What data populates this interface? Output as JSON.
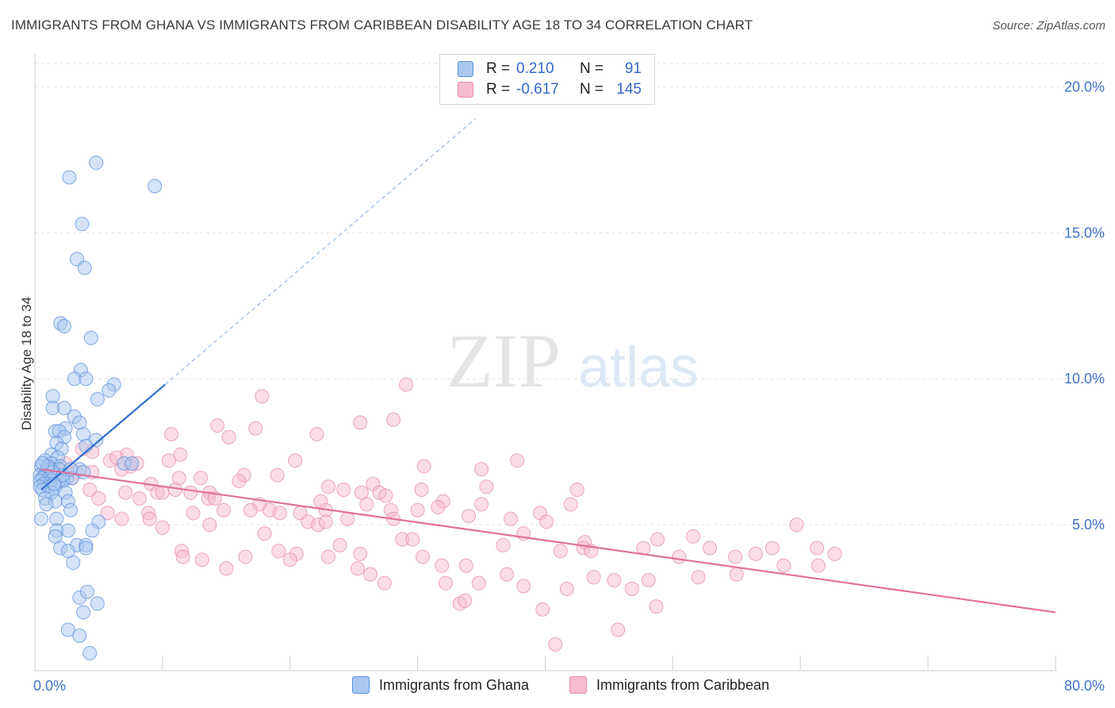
{
  "title": "IMMIGRANTS FROM GHANA VS IMMIGRANTS FROM CARIBBEAN DISABILITY AGE 18 TO 34 CORRELATION CHART",
  "source": "Source: ZipAtlas.com",
  "watermark": {
    "zip": "ZIP",
    "atlas": "atlas"
  },
  "legend": {
    "ghana": {
      "r_label": "R =",
      "r_value": "0.210",
      "n_label": "N =",
      "n_value": "91"
    },
    "caribbean": {
      "r_label": "R =",
      "r_value": "-0.617",
      "n_label": "N =",
      "n_value": "145"
    }
  },
  "bottom_legend": {
    "ghana": "Immigrants from Ghana",
    "caribbean": "Immigrants from Caribbean"
  },
  "colors": {
    "ghana_fill": "#aac8f0",
    "ghana_stroke": "#5b8fdc",
    "ghana_line": "#2f6fd0",
    "caribbean_fill": "#f7bcd0",
    "caribbean_stroke": "#e48aab",
    "caribbean_line": "#e0709a",
    "axis_text": "#3f72c9"
  },
  "chart_data": {
    "type": "scatter",
    "title": "IMMIGRANTS FROM GHANA VS IMMIGRANTS FROM CARIBBEAN DISABILITY AGE 18 TO 34 CORRELATION CHART",
    "xlabel": "",
    "ylabel": "Disability Age 18 to 34",
    "xlim": [
      0,
      80
    ],
    "ylim": [
      0,
      20.8
    ],
    "x_tick_labels": [
      "0.0%",
      "80.0%"
    ],
    "y_ticks": [
      5,
      10,
      15,
      20
    ],
    "y_tick_labels": [
      "5.0%",
      "10.0%",
      "15.0%",
      "20.0%"
    ],
    "grid": true,
    "series": [
      {
        "name": "Immigrants from Ghana",
        "r": 0.21,
        "n": 91,
        "trend_solid": [
          [
            0.5,
            6.2
          ],
          [
            10.2,
            9.8
          ]
        ],
        "trend_dashed": [
          [
            10.2,
            9.8
          ],
          [
            34.5,
            18.9
          ]
        ],
        "points": [
          [
            4.8,
            17.4
          ],
          [
            2.7,
            16.9
          ],
          [
            9.4,
            16.6
          ],
          [
            3.7,
            15.3
          ],
          [
            3.3,
            14.1
          ],
          [
            3.9,
            13.8
          ],
          [
            2.0,
            11.9
          ],
          [
            2.3,
            11.8
          ],
          [
            4.4,
            11.4
          ],
          [
            3.6,
            10.3
          ],
          [
            3.1,
            10.0
          ],
          [
            4.0,
            10.0
          ],
          [
            6.2,
            9.8
          ],
          [
            5.8,
            9.6
          ],
          [
            4.9,
            9.3
          ],
          [
            1.4,
            9.4
          ],
          [
            1.4,
            9.0
          ],
          [
            2.3,
            9.0
          ],
          [
            3.1,
            8.7
          ],
          [
            3.5,
            8.5
          ],
          [
            1.6,
            8.2
          ],
          [
            2.4,
            8.3
          ],
          [
            1.9,
            8.2
          ],
          [
            2.3,
            8.0
          ],
          [
            3.8,
            8.1
          ],
          [
            4.8,
            7.9
          ],
          [
            1.7,
            7.8
          ],
          [
            2.1,
            7.6
          ],
          [
            4.0,
            7.7
          ],
          [
            1.3,
            7.4
          ],
          [
            1.8,
            7.3
          ],
          [
            0.8,
            7.2
          ],
          [
            1.3,
            7.1
          ],
          [
            2.0,
            7.0
          ],
          [
            7.0,
            7.1
          ],
          [
            7.6,
            7.1
          ],
          [
            0.5,
            7.0
          ],
          [
            1.0,
            6.9
          ],
          [
            1.3,
            6.9
          ],
          [
            1.9,
            6.9
          ],
          [
            3.5,
            6.9
          ],
          [
            3.8,
            6.8
          ],
          [
            0.4,
            6.7
          ],
          [
            0.8,
            6.7
          ],
          [
            1.6,
            6.7
          ],
          [
            2.5,
            6.6
          ],
          [
            0.6,
            6.6
          ],
          [
            1.1,
            6.6
          ],
          [
            1.9,
            6.5
          ],
          [
            0.4,
            6.5
          ],
          [
            0.7,
            6.4
          ],
          [
            1.3,
            6.5
          ],
          [
            2.2,
            6.5
          ],
          [
            2.9,
            6.6
          ],
          [
            0.4,
            6.3
          ],
          [
            1.1,
            6.3
          ],
          [
            1.6,
            6.3
          ],
          [
            0.6,
            6.2
          ],
          [
            1.3,
            6.1
          ],
          [
            2.4,
            6.1
          ],
          [
            0.8,
            5.9
          ],
          [
            1.6,
            5.8
          ],
          [
            2.6,
            5.8
          ],
          [
            0.9,
            5.7
          ],
          [
            2.8,
            5.5
          ],
          [
            0.5,
            5.2
          ],
          [
            1.7,
            5.2
          ],
          [
            5.0,
            5.1
          ],
          [
            1.7,
            4.8
          ],
          [
            2.6,
            4.8
          ],
          [
            4.5,
            4.8
          ],
          [
            1.6,
            4.6
          ],
          [
            3.3,
            4.3
          ],
          [
            4.0,
            4.3
          ],
          [
            2.0,
            4.2
          ],
          [
            2.6,
            4.1
          ],
          [
            4.0,
            4.2
          ],
          [
            3.0,
            3.7
          ],
          [
            3.5,
            2.5
          ],
          [
            4.1,
            2.7
          ],
          [
            4.9,
            2.3
          ],
          [
            3.8,
            2.0
          ],
          [
            2.6,
            1.4
          ],
          [
            3.5,
            1.2
          ],
          [
            4.3,
            0.6
          ],
          [
            1.4,
            6.8
          ],
          [
            2.2,
            6.7
          ],
          [
            1.0,
            7.0
          ],
          [
            0.6,
            7.1
          ],
          [
            1.5,
            6.4
          ],
          [
            2.8,
            6.9
          ]
        ]
      },
      {
        "name": "Immigrants from Caribbean",
        "r": -0.617,
        "n": 145,
        "trend_solid": [
          [
            0.5,
            6.9
          ],
          [
            80.0,
            2.0
          ]
        ],
        "points": [
          [
            29.1,
            9.8
          ],
          [
            17.8,
            9.4
          ],
          [
            25.5,
            8.5
          ],
          [
            28.1,
            8.6
          ],
          [
            14.3,
            8.4
          ],
          [
            17.3,
            8.3
          ],
          [
            10.7,
            8.1
          ],
          [
            22.1,
            8.1
          ],
          [
            15.2,
            8.0
          ],
          [
            3.7,
            7.6
          ],
          [
            4.5,
            7.5
          ],
          [
            7.2,
            7.4
          ],
          [
            11.4,
            7.4
          ],
          [
            5.9,
            7.2
          ],
          [
            6.4,
            7.3
          ],
          [
            8.0,
            7.1
          ],
          [
            10.5,
            7.2
          ],
          [
            20.4,
            7.2
          ],
          [
            2.4,
            7.1
          ],
          [
            7.5,
            7.0
          ],
          [
            30.5,
            7.0
          ],
          [
            37.8,
            7.2
          ],
          [
            35.0,
            6.9
          ],
          [
            1.1,
            6.9
          ],
          [
            3.3,
            6.8
          ],
          [
            4.5,
            6.8
          ],
          [
            6.8,
            6.9
          ],
          [
            0.7,
            6.8
          ],
          [
            1.7,
            6.6
          ],
          [
            16.4,
            6.7
          ],
          [
            19.0,
            6.7
          ],
          [
            2.9,
            6.6
          ],
          [
            11.3,
            6.6
          ],
          [
            13.0,
            6.6
          ],
          [
            16.0,
            6.5
          ],
          [
            9.1,
            6.4
          ],
          [
            26.5,
            6.4
          ],
          [
            35.4,
            6.3
          ],
          [
            4.3,
            6.2
          ],
          [
            11.0,
            6.2
          ],
          [
            12.2,
            6.1
          ],
          [
            13.7,
            6.1
          ],
          [
            9.6,
            6.1
          ],
          [
            10.0,
            6.1
          ],
          [
            24.2,
            6.2
          ],
          [
            25.6,
            6.1
          ],
          [
            27.0,
            6.1
          ],
          [
            30.3,
            6.2
          ],
          [
            42.5,
            6.2
          ],
          [
            7.1,
            6.1
          ],
          [
            8.2,
            5.9
          ],
          [
            13.6,
            5.9
          ],
          [
            14.1,
            5.9
          ],
          [
            5.0,
            5.9
          ],
          [
            22.4,
            5.8
          ],
          [
            26.0,
            5.7
          ],
          [
            32.0,
            5.8
          ],
          [
            35.0,
            5.7
          ],
          [
            42.0,
            5.7
          ],
          [
            17.6,
            5.7
          ],
          [
            18.4,
            5.5
          ],
          [
            22.8,
            5.5
          ],
          [
            27.9,
            5.5
          ],
          [
            30.0,
            5.5
          ],
          [
            14.8,
            5.5
          ],
          [
            16.9,
            5.5
          ],
          [
            20.8,
            5.4
          ],
          [
            31.6,
            5.6
          ],
          [
            5.7,
            5.4
          ],
          [
            8.9,
            5.4
          ],
          [
            12.4,
            5.4
          ],
          [
            19.2,
            5.4
          ],
          [
            37.3,
            5.2
          ],
          [
            39.6,
            5.4
          ],
          [
            6.8,
            5.2
          ],
          [
            9.0,
            5.2
          ],
          [
            21.4,
            5.1
          ],
          [
            22.2,
            5.0
          ],
          [
            24.5,
            5.2
          ],
          [
            28.1,
            5.2
          ],
          [
            40.1,
            5.1
          ],
          [
            13.7,
            5.0
          ],
          [
            22.8,
            5.1
          ],
          [
            10.0,
            4.9
          ],
          [
            38.3,
            4.7
          ],
          [
            43.1,
            4.4
          ],
          [
            48.8,
            4.5
          ],
          [
            51.6,
            4.6
          ],
          [
            28.8,
            4.5
          ],
          [
            29.6,
            4.5
          ],
          [
            59.7,
            5.0
          ],
          [
            23.9,
            4.3
          ],
          [
            36.7,
            4.3
          ],
          [
            43.0,
            4.2
          ],
          [
            52.9,
            4.2
          ],
          [
            47.7,
            4.2
          ],
          [
            57.8,
            4.2
          ],
          [
            11.5,
            4.1
          ],
          [
            19.1,
            4.1
          ],
          [
            20.5,
            4.0
          ],
          [
            25.5,
            4.0
          ],
          [
            41.2,
            4.1
          ],
          [
            56.5,
            4.0
          ],
          [
            61.3,
            4.2
          ],
          [
            62.7,
            4.0
          ],
          [
            23.0,
            3.9
          ],
          [
            30.4,
            3.9
          ],
          [
            43.6,
            4.1
          ],
          [
            16.5,
            3.9
          ],
          [
            20.0,
            3.8
          ],
          [
            31.9,
            3.6
          ],
          [
            33.8,
            3.6
          ],
          [
            50.5,
            3.9
          ],
          [
            54.9,
            3.9
          ],
          [
            58.7,
            3.6
          ],
          [
            61.4,
            3.6
          ],
          [
            11.6,
            3.9
          ],
          [
            13.1,
            3.8
          ],
          [
            25.3,
            3.5
          ],
          [
            26.3,
            3.3
          ],
          [
            37.0,
            3.3
          ],
          [
            43.8,
            3.2
          ],
          [
            45.4,
            3.1
          ],
          [
            48.1,
            3.1
          ],
          [
            34.8,
            3.0
          ],
          [
            27.4,
            3.0
          ],
          [
            32.2,
            3.0
          ],
          [
            38.3,
            2.9
          ],
          [
            41.7,
            2.8
          ],
          [
            46.8,
            2.8
          ],
          [
            52.0,
            3.2
          ],
          [
            33.3,
            2.3
          ],
          [
            33.7,
            2.4
          ],
          [
            39.8,
            2.1
          ],
          [
            48.7,
            2.2
          ],
          [
            45.7,
            1.4
          ],
          [
            40.8,
            0.9
          ],
          [
            55.0,
            3.3
          ],
          [
            15.0,
            3.5
          ],
          [
            18.0,
            4.7
          ],
          [
            23.0,
            6.3
          ],
          [
            27.5,
            6.0
          ],
          [
            34.0,
            5.3
          ]
        ]
      }
    ]
  }
}
